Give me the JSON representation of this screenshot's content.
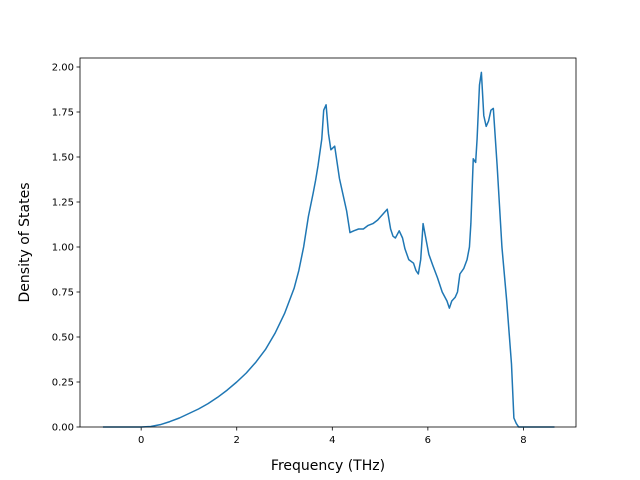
{
  "chart_data": {
    "type": "line",
    "xlabel": "Frequency (THz)",
    "ylabel": "Density of States",
    "xlim": [
      -1.28,
      9.1
    ],
    "ylim": [
      0.0,
      2.05
    ],
    "xticks": [
      0,
      2,
      4,
      6,
      8
    ],
    "xtick_labels": [
      "0",
      "2",
      "4",
      "6",
      "8"
    ],
    "yticks": [
      0.0,
      0.25,
      0.5,
      0.75,
      1.0,
      1.25,
      1.5,
      1.75,
      2.0
    ],
    "ytick_labels": [
      "0.00",
      "0.25",
      "0.50",
      "0.75",
      "1.00",
      "1.25",
      "1.50",
      "1.75",
      "2.00"
    ],
    "grid": false,
    "line_color": "#1f77b4",
    "series": [
      {
        "x": [
          -0.8,
          -0.5,
          -0.3,
          -0.1,
          0.0,
          0.2,
          0.4,
          0.6,
          0.8,
          1.0,
          1.2,
          1.4,
          1.6,
          1.8,
          2.0,
          2.2,
          2.4,
          2.6,
          2.8,
          3.0,
          3.1,
          3.2,
          3.3,
          3.4,
          3.5,
          3.6,
          3.65,
          3.7,
          3.78,
          3.82,
          3.87,
          3.92,
          3.97,
          4.05,
          4.15,
          4.25,
          4.3,
          4.37,
          4.45,
          4.55,
          4.65,
          4.75,
          4.85,
          4.95,
          5.05,
          5.15,
          5.22,
          5.27,
          5.32,
          5.4,
          5.47,
          5.52,
          5.6,
          5.7,
          5.75,
          5.8,
          5.85,
          5.9,
          5.97,
          6.02,
          6.1,
          6.2,
          6.3,
          6.4,
          6.45,
          6.5,
          6.57,
          6.62,
          6.67,
          6.75,
          6.82,
          6.87,
          6.9,
          6.95,
          7.0,
          7.03,
          7.08,
          7.12,
          7.17,
          7.22,
          7.27,
          7.32,
          7.37,
          7.45,
          7.55,
          7.65,
          7.75,
          7.8,
          7.85,
          7.9,
          8.0,
          8.3,
          8.65
        ],
        "y": [
          0.0,
          0.0,
          0.0,
          0.0,
          0.0,
          0.003,
          0.013,
          0.03,
          0.05,
          0.075,
          0.1,
          0.13,
          0.165,
          0.205,
          0.25,
          0.3,
          0.36,
          0.43,
          0.52,
          0.63,
          0.7,
          0.77,
          0.87,
          1.0,
          1.17,
          1.3,
          1.37,
          1.45,
          1.6,
          1.76,
          1.79,
          1.63,
          1.54,
          1.56,
          1.38,
          1.26,
          1.2,
          1.08,
          1.09,
          1.1,
          1.1,
          1.12,
          1.13,
          1.15,
          1.18,
          1.21,
          1.1,
          1.06,
          1.05,
          1.09,
          1.05,
          0.99,
          0.93,
          0.91,
          0.87,
          0.85,
          0.93,
          1.13,
          1.03,
          0.96,
          0.9,
          0.83,
          0.75,
          0.7,
          0.66,
          0.7,
          0.72,
          0.75,
          0.85,
          0.88,
          0.93,
          1.0,
          1.13,
          1.49,
          1.47,
          1.6,
          1.9,
          1.97,
          1.73,
          1.67,
          1.7,
          1.76,
          1.77,
          1.45,
          1.0,
          0.7,
          0.35,
          0.05,
          0.02,
          0.0,
          0.0,
          0.0,
          0.0
        ]
      }
    ]
  }
}
